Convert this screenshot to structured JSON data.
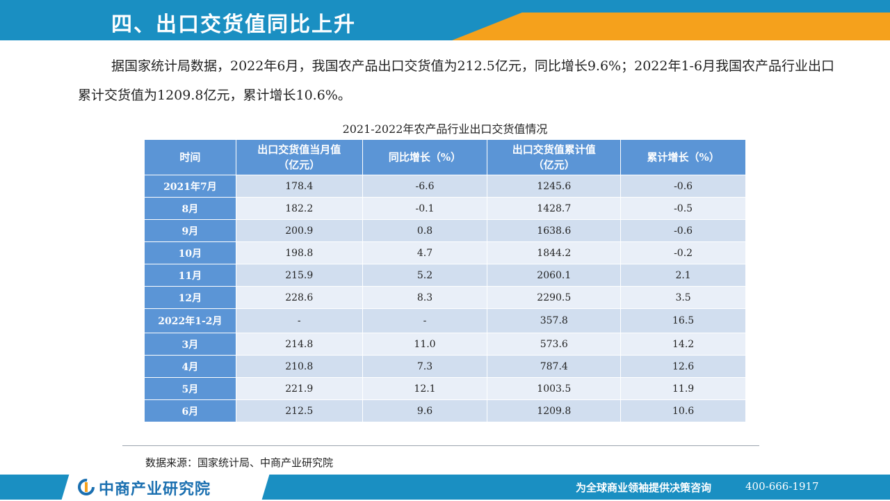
{
  "header": {
    "title": "四、出口交货值同比上升"
  },
  "intro": "据国家统计局数据，2022年6月，我国农产品出口交货值为212.5亿元，同比增长9.6%；2022年1-6月我国农产品行业出口累计交货值为1209.8亿元，累计增长10.6%。",
  "table": {
    "caption": "2021-2022年农产品行业出口交货值情况",
    "headers": {
      "time": "时间",
      "monthly_l1": "出口交货值当月值",
      "monthly_l2": "（亿元）",
      "yoy": "同比增长（%）",
      "cum_l1": "出口交货值累计值",
      "cum_l2": "（亿元）",
      "cum_growth": "累计增长（%）"
    },
    "rows": [
      {
        "time": "2021年7月",
        "monthly": "178.4",
        "yoy": "-6.6",
        "cum": "1245.6",
        "cum_growth": "-0.6"
      },
      {
        "time": "8月",
        "monthly": "182.2",
        "yoy": "-0.1",
        "cum": "1428.7",
        "cum_growth": "-0.5"
      },
      {
        "time": "9月",
        "monthly": "200.9",
        "yoy": "0.8",
        "cum": "1638.6",
        "cum_growth": "-0.6"
      },
      {
        "time": "10月",
        "monthly": "198.8",
        "yoy": "4.7",
        "cum": "1844.2",
        "cum_growth": "-0.2"
      },
      {
        "time": "11月",
        "monthly": "215.9",
        "yoy": "5.2",
        "cum": "2060.1",
        "cum_growth": "2.1"
      },
      {
        "time": "12月",
        "monthly": "228.6",
        "yoy": "8.3",
        "cum": "2290.5",
        "cum_growth": "3.5"
      },
      {
        "time": "2022年1-2月",
        "monthly": "-",
        "yoy": "-",
        "cum": "357.8",
        "cum_growth": "16.5"
      },
      {
        "time": "3月",
        "monthly": "214.8",
        "yoy": "11.0",
        "cum": "573.6",
        "cum_growth": "14.2"
      },
      {
        "time": "4月",
        "monthly": "210.8",
        "yoy": "7.3",
        "cum": "787.4",
        "cum_growth": "12.6"
      },
      {
        "time": "5月",
        "monthly": "221.9",
        "yoy": "12.1",
        "cum": "1003.5",
        "cum_growth": "11.9"
      },
      {
        "time": "6月",
        "monthly": "212.5",
        "yoy": "9.6",
        "cum": "1209.8",
        "cum_growth": "10.6"
      }
    ]
  },
  "source": "数据来源：国家统计局、中商产业研究院",
  "footer": {
    "logo_text": "中商产业研究院",
    "slogan": "为全球商业领袖提供决策咨询",
    "phone": "400-666-1917"
  },
  "colors": {
    "brand_blue": "#1a8fc2",
    "accent_orange": "#f5a11c",
    "table_header": "#5b95d6"
  },
  "icons": {
    "logo": "zhongshang-logo-icon"
  }
}
